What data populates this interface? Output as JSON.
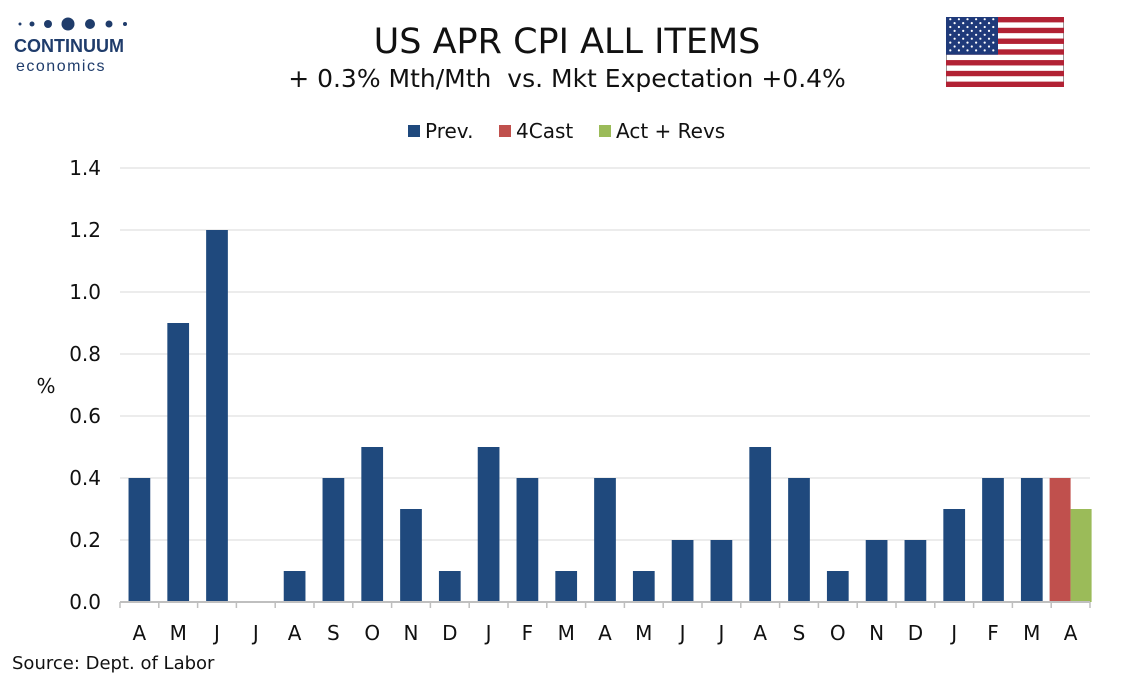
{
  "brand": {
    "name": "CONTINUUM",
    "sub": "economics"
  },
  "header": {
    "title": "US APR CPI ALL ITEMS",
    "subtitle": "+ 0.3% Mth/Mth  vs. Mkt Expectation +0.4%"
  },
  "source": "Source: Dept. of Labor",
  "colors": {
    "prev": "#1f497d",
    "forecast": "#c0504d",
    "actual": "#9bbb59",
    "grid": "#d9d9d9",
    "axis": "#bfbfbf"
  },
  "chart_data": {
    "type": "bar",
    "ylabel": "%",
    "xlabel": "",
    "ylim": [
      0,
      1.4
    ],
    "yticks": [
      "0.0",
      "0.2",
      "0.4",
      "0.6",
      "0.8",
      "1.0",
      "1.2",
      "1.4"
    ],
    "grid": true,
    "legend_position": "top-center",
    "categories": [
      "A",
      "M",
      "J",
      "J",
      "A",
      "S",
      "O",
      "N",
      "D",
      "J",
      "F",
      "M",
      "A",
      "M",
      "J",
      "J",
      "A",
      "S",
      "O",
      "N",
      "D",
      "J",
      "F",
      "M",
      "A"
    ],
    "series": [
      {
        "name": "Prev.",
        "color": "#1f497d",
        "values": [
          0.4,
          0.9,
          1.2,
          0.0,
          0.1,
          0.4,
          0.5,
          0.3,
          0.1,
          0.5,
          0.4,
          0.1,
          0.4,
          0.1,
          0.2,
          0.2,
          0.5,
          0.4,
          0.1,
          0.2,
          0.2,
          0.3,
          0.4,
          0.4,
          null
        ]
      },
      {
        "name": "4Cast",
        "color": "#c0504d",
        "values": [
          null,
          null,
          null,
          null,
          null,
          null,
          null,
          null,
          null,
          null,
          null,
          null,
          null,
          null,
          null,
          null,
          null,
          null,
          null,
          null,
          null,
          null,
          null,
          null,
          0.4
        ]
      },
      {
        "name": "Act + Revs",
        "color": "#9bbb59",
        "values": [
          null,
          null,
          null,
          null,
          null,
          null,
          null,
          null,
          null,
          null,
          null,
          null,
          null,
          null,
          null,
          null,
          null,
          null,
          null,
          null,
          null,
          null,
          null,
          null,
          0.3
        ]
      }
    ]
  }
}
